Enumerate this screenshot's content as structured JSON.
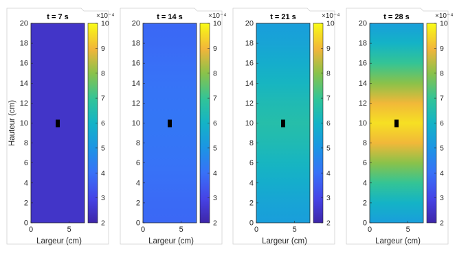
{
  "chart_data": [
    {
      "type": "heatmap",
      "title": "t = 7 s",
      "xlabel": "Largeur (cm)",
      "ylabel": "Hauteur (cm)",
      "xlim": [
        0,
        7
      ],
      "ylim": [
        0,
        20
      ],
      "xticks": [
        0,
        5
      ],
      "yticks": [
        0,
        2,
        4,
        6,
        8,
        10,
        12,
        14,
        16,
        18,
        20
      ],
      "colorbar": {
        "min": 2,
        "max": 10,
        "ticks": [
          2,
          3,
          4,
          5,
          6,
          7,
          8,
          9,
          10
        ],
        "exponent": "×10⁻⁴"
      },
      "field_profile_y": [
        0,
        2,
        4,
        6,
        8,
        10,
        12,
        14,
        16,
        18,
        20
      ],
      "field_profile_values": [
        2.5,
        2.5,
        2.5,
        2.5,
        2.5,
        2.5,
        2.5,
        2.5,
        2.5,
        2.5,
        2.5
      ],
      "sample_marker": {
        "x": 3.5,
        "y": 10
      }
    },
    {
      "type": "heatmap",
      "title": "t = 14 s",
      "xlabel": "Largeur (cm)",
      "ylabel": "",
      "xlim": [
        0,
        7
      ],
      "ylim": [
        0,
        20
      ],
      "xticks": [
        0,
        5
      ],
      "yticks": [
        0,
        2,
        4,
        6,
        8,
        10,
        12,
        14,
        16,
        18,
        20
      ],
      "colorbar": {
        "min": 2,
        "max": 10,
        "ticks": [
          2,
          3,
          4,
          5,
          6,
          7,
          8,
          9,
          10
        ],
        "exponent": "×10⁻⁴"
      },
      "field_profile_y": [
        0,
        2,
        4,
        6,
        8,
        10,
        12,
        14,
        16,
        18,
        20
      ],
      "field_profile_values": [
        3.8,
        3.85,
        3.95,
        4.05,
        4.1,
        4.15,
        4.1,
        4.05,
        3.95,
        3.85,
        3.8
      ],
      "sample_marker": {
        "x": 3.5,
        "y": 10
      }
    },
    {
      "type": "heatmap",
      "title": "t = 21 s",
      "xlabel": "Largeur (cm)",
      "ylabel": "",
      "xlim": [
        0,
        7
      ],
      "ylim": [
        0,
        20
      ],
      "xticks": [
        0,
        5
      ],
      "yticks": [
        0,
        2,
        4,
        6,
        8,
        10,
        12,
        14,
        16,
        18,
        20
      ],
      "colorbar": {
        "min": 2,
        "max": 10,
        "ticks": [
          2,
          3,
          4,
          5,
          6,
          7,
          8,
          9,
          10
        ],
        "exponent": "×10⁻⁴"
      },
      "field_profile_y": [
        0,
        2,
        4,
        6,
        8,
        10,
        12,
        14,
        16,
        18,
        20
      ],
      "field_profile_values": [
        5.3,
        5.5,
        5.8,
        6.1,
        6.4,
        6.6,
        6.4,
        6.1,
        5.8,
        5.5,
        5.3
      ],
      "sample_marker": {
        "x": 3.5,
        "y": 10
      }
    },
    {
      "type": "heatmap",
      "title": "t = 28 s",
      "xlabel": "Largeur (cm)",
      "ylabel": "",
      "xlim": [
        0,
        7
      ],
      "ylim": [
        0,
        20
      ],
      "xticks": [
        0,
        5
      ],
      "yticks": [
        0,
        2,
        4,
        6,
        8,
        10,
        12,
        14,
        16,
        18,
        20
      ],
      "colorbar": {
        "min": 2,
        "max": 10,
        "ticks": [
          2,
          3,
          4,
          5,
          6,
          7,
          8,
          9,
          10
        ],
        "exponent": "×10⁻⁴"
      },
      "field_profile_y": [
        0,
        2,
        4,
        6,
        8,
        10,
        12,
        14,
        16,
        18,
        20
      ],
      "field_profile_values": [
        5.3,
        6.0,
        7.0,
        8.0,
        9.0,
        9.6,
        9.0,
        8.0,
        7.0,
        6.0,
        5.3
      ],
      "sample_marker": {
        "x": 3.5,
        "y": 10
      }
    }
  ]
}
